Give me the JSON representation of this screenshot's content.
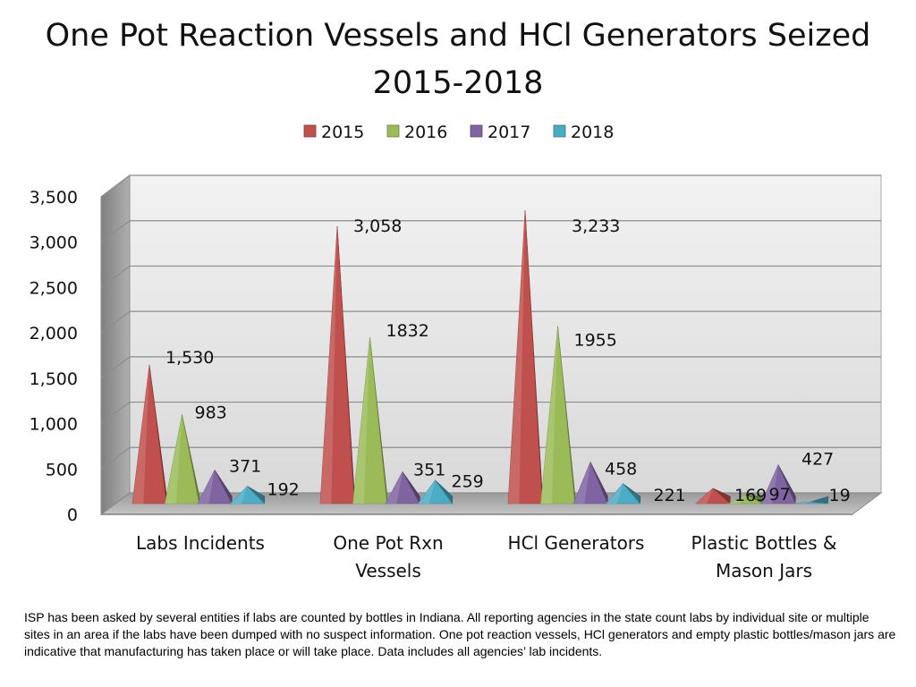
{
  "chart_data": {
    "type": "bar",
    "title": "One Pot Reaction Vessels and HCl Generators Seized 2015-2018",
    "categories": [
      [
        "Labs Incidents"
      ],
      [
        "One Pot Rxn",
        "Vessels"
      ],
      [
        "HCl Generators"
      ],
      [
        "Plastic Bottles &",
        "Mason Jars"
      ]
    ],
    "series": [
      {
        "name": "2015",
        "color": "#C0504D",
        "values": [
          1530,
          3058,
          3233,
          169
        ],
        "labels": [
          "1,530",
          "3,058",
          "3,233",
          "169"
        ]
      },
      {
        "name": "2016",
        "color": "#9BBB59",
        "values": [
          983,
          1832,
          1955,
          97
        ],
        "labels": [
          "983",
          "1832",
          "1955",
          "97"
        ]
      },
      {
        "name": "2017",
        "color": "#8064A2",
        "values": [
          371,
          351,
          458,
          427
        ],
        "labels": [
          "371",
          "351",
          "458",
          "427"
        ]
      },
      {
        "name": "2018",
        "color": "#4BACC6",
        "values": [
          192,
          259,
          221,
          19
        ],
        "labels": [
          "192",
          "259",
          "221",
          "19"
        ]
      }
    ],
    "ylim": [
      0,
      3500
    ],
    "yticks": [
      "0",
      "500",
      "1,000",
      "1,500",
      "2,000",
      "2,500",
      "3,000",
      "3,500"
    ],
    "grid": true,
    "legend_position": "top",
    "shape": "3d-pyramid"
  },
  "footnote": "ISP has been asked by several entities if labs are counted by bottles in Indiana.  All reporting agencies in the state count labs by individual site or multiple sites in an area if the labs have been dumped with no suspect information.  One pot reaction vessels, HCl generators and empty plastic bottles/mason jars  are indicative that manufacturing has taken place or will take place.  Data includes all agencies’ lab incidents."
}
